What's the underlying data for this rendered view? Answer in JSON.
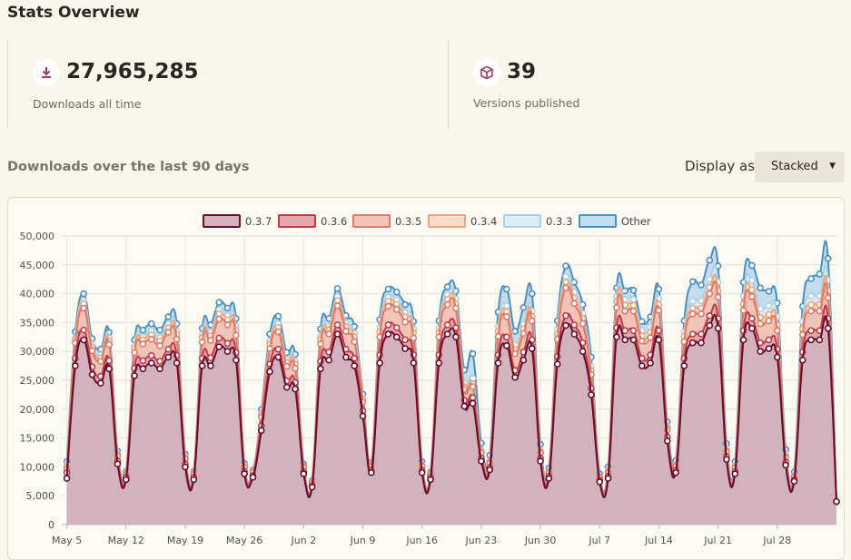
{
  "header": {
    "title": "Stats Overview"
  },
  "stats": {
    "downloads_value": "27,965,285",
    "downloads_label": "Downloads all time",
    "downloads_icon": "download-icon",
    "versions_value": "39",
    "versions_label": "Versions published",
    "versions_icon": "package-icon"
  },
  "chart_section": {
    "title": "Downloads over the last 90 days",
    "display_label": "Display as",
    "display_value": "Stacked"
  },
  "colors": {
    "accent": "#a03a6c",
    "background": "#f9f7ec"
  },
  "chart_data": {
    "type": "area",
    "stacked": true,
    "legend_position": "top",
    "grid": true,
    "ylim": [
      0,
      50000
    ],
    "yticks": [
      0,
      5000,
      10000,
      15000,
      20000,
      25000,
      30000,
      35000,
      40000,
      45000,
      50000
    ],
    "ytick_labels": [
      "0",
      "5,000",
      "10,000",
      "15,000",
      "20,000",
      "25,000",
      "30,000",
      "35,000",
      "40,000",
      "45,000",
      "50,000"
    ],
    "xtick_labels": [
      "May 5",
      "May 12",
      "May 19",
      "May 26",
      "Jun 2",
      "Jun 9",
      "Jun 16",
      "Jun 23",
      "Jun 30",
      "Jul 7",
      "Jul 14",
      "Jul 21",
      "Jul 28"
    ],
    "xtick_index": [
      0,
      7,
      14,
      21,
      28,
      35,
      42,
      49,
      56,
      63,
      70,
      77,
      84
    ],
    "x_start": -0.6,
    "series": [
      {
        "name": "0.3.7",
        "color": "#6b0d2b",
        "fill": "#d2b3bd",
        "values": [
          8000,
          27500,
          32000,
          26000,
          24500,
          27000,
          10500,
          7800,
          25800,
          27000,
          28000,
          27000,
          29000,
          28000,
          10000,
          7800,
          27500,
          27500,
          30800,
          30000,
          28500,
          8800,
          8200,
          16300,
          26500,
          29000,
          23800,
          23500,
          8800,
          6500,
          27000,
          28500,
          33000,
          29000,
          27500,
          18800,
          9000,
          28000,
          33000,
          32500,
          30500,
          28000,
          9000,
          7800,
          28000,
          33000,
          32500,
          20500,
          21000,
          11000,
          9500,
          28000,
          31000,
          25500,
          28500,
          30500,
          11000,
          8000,
          27800,
          34500,
          33000,
          30000,
          22500,
          7400,
          8000,
          32500,
          32000,
          32000,
          27500,
          28000,
          32000,
          14500,
          9000,
          27500,
          31500,
          31500,
          34500,
          34000,
          11300,
          8800,
          32000,
          34000,
          30000,
          30500,
          29000,
          10300,
          7500,
          28500,
          32000,
          32000,
          34000,
          4000
        ]
      },
      {
        "name": "0.3.6",
        "color": "#c23a48",
        "fill": "#e3a7ac",
        "values": [
          1000,
          1300,
          1700,
          1300,
          1200,
          1400,
          500,
          400,
          1300,
          1400,
          1300,
          1300,
          1400,
          1300,
          500,
          400,
          1300,
          1400,
          1500,
          1400,
          1300,
          400,
          300,
          800,
          1300,
          1400,
          1100,
          1100,
          400,
          300,
          1300,
          1400,
          1600,
          1400,
          1300,
          900,
          400,
          1400,
          1600,
          1600,
          1500,
          1400,
          400,
          400,
          1400,
          1600,
          1600,
          1000,
          1000,
          500,
          400,
          1400,
          1500,
          1200,
          1400,
          1500,
          500,
          400,
          1300,
          1700,
          1600,
          1500,
          1100,
          300,
          400,
          1600,
          1600,
          1600,
          1300,
          1400,
          1600,
          700,
          400,
          1300,
          1500,
          1500,
          1700,
          1700,
          500,
          400,
          1600,
          1700,
          1500,
          1500,
          1400,
          500,
          300,
          1400,
          1600,
          1600,
          1700,
          0
        ]
      },
      {
        "name": "0.3.5",
        "color": "#e07a66",
        "fill": "#f2c4b8",
        "values": [
          600,
          2700,
          3800,
          2800,
          2600,
          2800,
          900,
          500,
          2700,
          2900,
          2800,
          2700,
          2900,
          2800,
          900,
          500,
          2800,
          3000,
          3300,
          3200,
          3000,
          700,
          500,
          1500,
          2700,
          3000,
          2500,
          2500,
          700,
          400,
          3000,
          3100,
          3300,
          3100,
          2900,
          1500,
          700,
          3100,
          3200,
          3200,
          3100,
          2900,
          700,
          500,
          3100,
          3500,
          3400,
          1900,
          1900,
          900,
          700,
          3200,
          3500,
          2900,
          3200,
          3300,
          900,
          600,
          3000,
          4800,
          3700,
          3300,
          2400,
          500,
          600,
          3500,
          3400,
          3400,
          3000,
          3000,
          3500,
          1200,
          700,
          2900,
          3500,
          3500,
          3800,
          3700,
          800,
          600,
          3500,
          3800,
          3300,
          3300,
          3200,
          800,
          500,
          3000,
          3400,
          3400,
          3600,
          0
        ]
      },
      {
        "name": "0.3.4",
        "color": "#f2a37a",
        "fill": "#f8dccb",
        "values": [
          400,
          500,
          800,
          600,
          600,
          600,
          200,
          200,
          700,
          700,
          800,
          800,
          800,
          800,
          200,
          200,
          800,
          800,
          900,
          900,
          900,
          200,
          100,
          400,
          800,
          800,
          700,
          700,
          200,
          100,
          800,
          800,
          900,
          800,
          800,
          400,
          200,
          900,
          900,
          900,
          900,
          900,
          200,
          100,
          800,
          900,
          800,
          500,
          500,
          200,
          200,
          900,
          900,
          700,
          800,
          800,
          200,
          100,
          900,
          1000,
          1000,
          900,
          700,
          100,
          200,
          1000,
          1000,
          1000,
          900,
          900,
          1000,
          300,
          200,
          900,
          1000,
          1000,
          1100,
          1100,
          200,
          200,
          1100,
          1200,
          1100,
          1100,
          1000,
          200,
          100,
          1000,
          1100,
          1100,
          1200,
          0
        ]
      },
      {
        "name": "0.3.3",
        "color": "#a8d4ea",
        "fill": "#dcecf4",
        "values": [
          300,
          400,
          500,
          500,
          500,
          500,
          200,
          100,
          500,
          500,
          600,
          600,
          600,
          600,
          200,
          100,
          500,
          600,
          700,
          700,
          700,
          200,
          100,
          300,
          500,
          600,
          500,
          500,
          100,
          100,
          500,
          600,
          700,
          600,
          600,
          300,
          100,
          700,
          700,
          700,
          700,
          700,
          200,
          100,
          700,
          800,
          800,
          600,
          900,
          300,
          200,
          800,
          1000,
          800,
          800,
          900,
          300,
          100,
          800,
          1000,
          1000,
          900,
          700,
          100,
          200,
          900,
          1000,
          1000,
          900,
          900,
          1000,
          300,
          200,
          800,
          1200,
          1300,
          1400,
          1500,
          400,
          300,
          1400,
          1600,
          1500,
          1500,
          1400,
          400,
          200,
          1300,
          1500,
          1500,
          1800,
          0
        ]
      },
      {
        "name": "Other",
        "color": "#4a8fc4",
        "fill": "#c2ddee",
        "values": [
          600,
          1000,
          1200,
          1000,
          1000,
          1000,
          400,
          200,
          1000,
          1200,
          1300,
          1300,
          1300,
          1300,
          400,
          200,
          1100,
          1300,
          1300,
          1300,
          1300,
          300,
          200,
          600,
          1200,
          1300,
          1200,
          1200,
          300,
          200,
          1300,
          1300,
          1400,
          1300,
          1200,
          700,
          300,
          1400,
          1400,
          1400,
          1400,
          1300,
          400,
          200,
          1300,
          1400,
          1400,
          2300,
          4300,
          1200,
          1000,
          2500,
          2900,
          2400,
          2900,
          3000,
          1000,
          600,
          1500,
          1800,
          1700,
          1500,
          1600,
          400,
          600,
          1500,
          1500,
          1600,
          1600,
          1800,
          1700,
          800,
          600,
          1900,
          3400,
          2700,
          3300,
          2800,
          800,
          600,
          2400,
          2600,
          3600,
          2500,
          2400,
          800,
          500,
          2600,
          3000,
          3800,
          3800,
          0
        ]
      }
    ]
  }
}
